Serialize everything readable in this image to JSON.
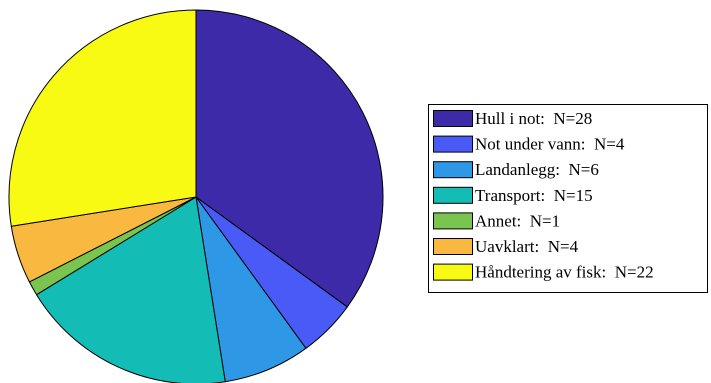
{
  "chart_data": {
    "type": "pie",
    "start_angle_deg": 90,
    "direction": "clockwise",
    "legend_position": "right",
    "slices": [
      {
        "label": "Hull i not:  N=28",
        "value": 28,
        "color": "#3D2AA9"
      },
      {
        "label": "Not under vann:  N=4",
        "value": 4,
        "color": "#4A5AF7"
      },
      {
        "label": "Landanlegg:  N=6",
        "value": 6,
        "color": "#2E97E6"
      },
      {
        "label": "Transport:  N=15",
        "value": 15,
        "color": "#14BCB6"
      },
      {
        "label": "Annet:  N=1",
        "value": 1,
        "color": "#79C54F"
      },
      {
        "label": "Uavklart:  N=4",
        "value": 4,
        "color": "#F9B940"
      },
      {
        "label": "Håndtering av fisk:  N=22",
        "value": 22,
        "color": "#F9FA14"
      }
    ]
  }
}
